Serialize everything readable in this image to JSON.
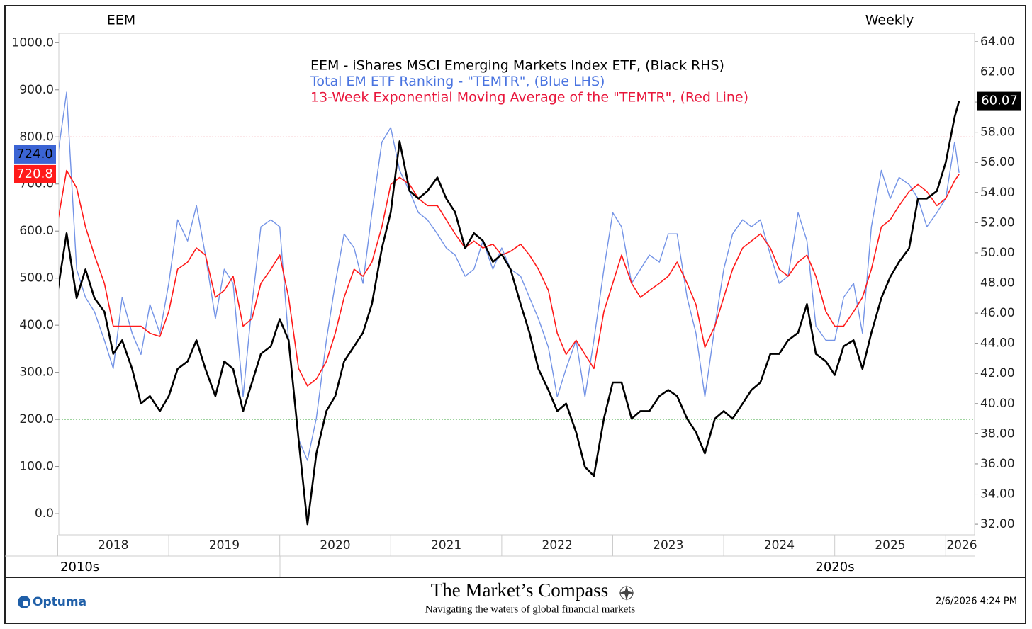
{
  "chart_data": {
    "type": "line",
    "header_left": "EEM",
    "header_right": "Weekly",
    "x": [
      2018,
      2018.08,
      2018.17,
      2018.25,
      2018.33,
      2018.42,
      2018.5,
      2018.58,
      2018.67,
      2018.75,
      2018.83,
      2018.92,
      2019,
      2019.08,
      2019.17,
      2019.25,
      2019.33,
      2019.42,
      2019.5,
      2019.58,
      2019.67,
      2019.75,
      2019.83,
      2019.92,
      2020,
      2020.08,
      2020.17,
      2020.25,
      2020.33,
      2020.42,
      2020.5,
      2020.58,
      2020.67,
      2020.75,
      2020.83,
      2020.92,
      2021,
      2021.08,
      2021.17,
      2021.25,
      2021.33,
      2021.42,
      2021.5,
      2021.58,
      2021.67,
      2021.75,
      2021.83,
      2021.92,
      2022,
      2022.08,
      2022.17,
      2022.25,
      2022.33,
      2022.42,
      2022.5,
      2022.58,
      2022.67,
      2022.75,
      2022.83,
      2022.92,
      2023,
      2023.08,
      2023.17,
      2023.25,
      2023.33,
      2023.42,
      2023.5,
      2023.58,
      2023.67,
      2023.75,
      2023.83,
      2023.92,
      2024,
      2024.08,
      2024.17,
      2024.25,
      2024.33,
      2024.42,
      2024.5,
      2024.58,
      2024.67,
      2024.75,
      2024.83,
      2024.92,
      2025,
      2025.08,
      2025.17,
      2025.25,
      2025.33,
      2025.42,
      2025.5,
      2025.58,
      2025.67,
      2025.75,
      2025.83,
      2025.92,
      2026,
      2026.08,
      2026.12
    ],
    "series": [
      {
        "name": "EEM - iShares MSCI Emerging Markets Index ETF, (Black RHS)",
        "color": "#000000",
        "axis": "y2",
        "width": 2.6,
        "last_label": "60.07",
        "values": [
          47.5,
          51.3,
          47.0,
          48.9,
          47.0,
          46.1,
          43.3,
          44.2,
          42.3,
          40.0,
          40.5,
          39.5,
          40.5,
          42.3,
          42.8,
          44.2,
          42.3,
          40.5,
          42.8,
          42.3,
          39.5,
          41.4,
          43.3,
          43.8,
          45.6,
          44.2,
          37.6,
          32.0,
          36.7,
          39.5,
          40.5,
          42.8,
          43.8,
          44.7,
          46.6,
          50.3,
          52.7,
          57.4,
          54.1,
          53.6,
          54.1,
          55.0,
          53.6,
          52.7,
          50.3,
          51.3,
          50.8,
          49.4,
          49.9,
          48.9,
          46.6,
          44.7,
          42.3,
          40.9,
          39.5,
          40.0,
          38.1,
          35.8,
          35.2,
          39.0,
          41.4,
          41.4,
          39.0,
          39.5,
          39.5,
          40.5,
          40.9,
          40.5,
          39.0,
          38.1,
          36.7,
          39.0,
          39.5,
          39.0,
          40.0,
          40.9,
          41.4,
          43.3,
          43.3,
          44.2,
          44.7,
          46.6,
          43.3,
          42.8,
          41.9,
          43.8,
          44.2,
          42.3,
          44.7,
          47.0,
          48.4,
          49.4,
          50.3,
          53.6,
          53.6,
          54.1,
          56.0,
          59.0,
          60.07
        ]
      },
      {
        "name": "Total EM ETF Ranking - \"TEMTR\", (Blue LHS)",
        "color": "#7393e6",
        "axis": "y",
        "width": 1.4,
        "last_label": "724.0",
        "label_color": "#3b64d4",
        "values": [
          760,
          895,
          519,
          459,
          429,
          368,
          308,
          459,
          383,
          338,
          444,
          383,
          489,
          624,
          579,
          654,
          549,
          414,
          519,
          489,
          248,
          444,
          609,
          624,
          609,
          368,
          158,
          113,
          203,
          368,
          489,
          594,
          564,
          489,
          639,
          789,
          820,
          729,
          684,
          639,
          624,
          594,
          564,
          549,
          504,
          519,
          579,
          519,
          564,
          519,
          504,
          459,
          414,
          353,
          248,
          308,
          368,
          248,
          368,
          519,
          639,
          609,
          489,
          519,
          549,
          534,
          594,
          594,
          459,
          383,
          248,
          398,
          519,
          594,
          624,
          609,
          624,
          549,
          489,
          504,
          639,
          579,
          398,
          368,
          368,
          459,
          489,
          383,
          609,
          729,
          669,
          714,
          699,
          669,
          609,
          639,
          669,
          789,
          724.0
        ]
      },
      {
        "name": "13-Week Exponential Moving Average of the \"TEMTR\", (Red Line)",
        "color": "#ff1a1a",
        "axis": "y",
        "width": 1.6,
        "last_label": "720.8",
        "values": [
          620,
          729,
          692,
          609,
          549,
          489,
          398,
          398,
          398,
          398,
          383,
          376,
          429,
          519,
          534,
          564,
          549,
          459,
          474,
          504,
          398,
          414,
          489,
          519,
          549,
          459,
          308,
          271,
          286,
          323,
          383,
          459,
          519,
          504,
          534,
          609,
          699,
          714,
          699,
          669,
          654,
          654,
          624,
          594,
          564,
          579,
          564,
          572,
          549,
          557,
          572,
          549,
          519,
          474,
          383,
          338,
          368,
          338,
          308,
          429,
          489,
          549,
          489,
          459,
          474,
          489,
          504,
          534,
          489,
          444,
          353,
          398,
          459,
          519,
          564,
          579,
          594,
          564,
          519,
          504,
          534,
          549,
          504,
          429,
          398,
          398,
          429,
          459,
          519,
          609,
          624,
          654,
          684,
          699,
          684,
          654,
          669,
          707,
          720.8
        ]
      }
    ],
    "legend_colors": [
      "#000000",
      "#4a74e0",
      "#e8173c"
    ],
    "xlim": [
      2018,
      2026.26
    ],
    "xticks": [
      2018,
      2019,
      2020,
      2021,
      2022,
      2023,
      2024,
      2025,
      2026
    ],
    "decade_labels": [
      "2010s",
      "2020s"
    ],
    "ylim": [
      -45,
      1020
    ],
    "yticks": [
      {
        "value": 0,
        "label": "0.0"
      },
      {
        "value": 100,
        "label": "100.0"
      },
      {
        "value": 200,
        "label": "200.0"
      },
      {
        "value": 300,
        "label": "300.0"
      },
      {
        "value": 400,
        "label": "400.0"
      },
      {
        "value": 500,
        "label": "500.0"
      },
      {
        "value": 600,
        "label": "600.0"
      },
      {
        "value": 700,
        "label": "700.0"
      },
      {
        "value": 800,
        "label": "800.0"
      },
      {
        "value": 900,
        "label": "900.0"
      },
      {
        "value": 1000,
        "label": "1000.0"
      }
    ],
    "y2lim": [
      31.3,
      64.56
    ],
    "y2ticks": [
      {
        "value": 32,
        "label": "32.00"
      },
      {
        "value": 34,
        "label": "34.00"
      },
      {
        "value": 36,
        "label": "36.00"
      },
      {
        "value": 38,
        "label": "38.00"
      },
      {
        "value": 40,
        "label": "40.00"
      },
      {
        "value": 42,
        "label": "42.00"
      },
      {
        "value": 44,
        "label": "44.00"
      },
      {
        "value": 46,
        "label": "46.00"
      },
      {
        "value": 48,
        "label": "48.00"
      },
      {
        "value": 50,
        "label": "50.00"
      },
      {
        "value": 52,
        "label": "52.00"
      },
      {
        "value": 54,
        "label": "54.00"
      },
      {
        "value": 56,
        "label": "56.00"
      },
      {
        "value": 58,
        "label": "58.00"
      },
      {
        "value": 60,
        "label": "60.00"
      },
      {
        "value": 62,
        "label": "62.00"
      },
      {
        "value": 64,
        "label": "64.00"
      }
    ],
    "reference_lines": [
      {
        "value": 800,
        "color": "#f2a0a8"
      },
      {
        "value": 200,
        "color": "#66bb66"
      }
    ],
    "grid": false
  },
  "footer": {
    "brand": "Optuma",
    "title": "The Market’s Compass",
    "subtitle": "Navigating the waters of global financial markets",
    "timestamp": "2/6/2026 4:24 PM"
  }
}
